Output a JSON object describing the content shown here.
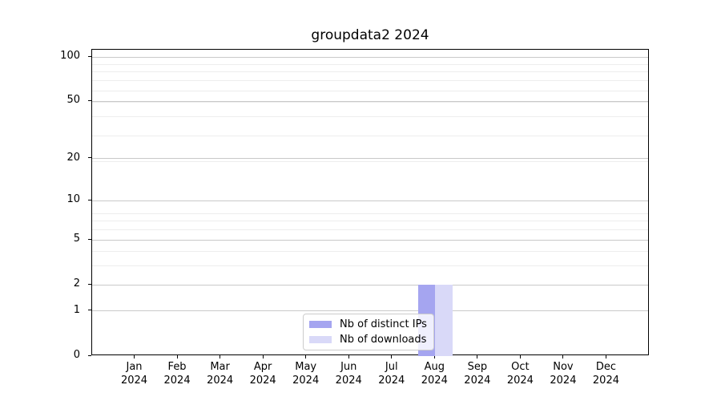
{
  "chart_data": {
    "type": "bar",
    "title": "groupdata2 2024",
    "x_categories": [
      "Jan",
      "Feb",
      "Mar",
      "Apr",
      "May",
      "Jun",
      "Jul",
      "Aug",
      "Sep",
      "Oct",
      "Nov",
      "Dec"
    ],
    "x_year": "2024",
    "series": [
      {
        "name": "Nb of distinct IPs",
        "color": "#a5a5f0",
        "values": [
          0,
          0,
          0,
          0,
          0,
          0,
          0,
          2,
          0,
          0,
          0,
          0
        ]
      },
      {
        "name": "Nb of downloads",
        "color": "#d9d9f8",
        "values": [
          0,
          0,
          0,
          0,
          0,
          0,
          0,
          2,
          0,
          0,
          0,
          0
        ]
      }
    ],
    "yscale": "log1p",
    "ylabel": "",
    "xlabel": "",
    "yticks": [
      0,
      1,
      2,
      5,
      10,
      20,
      50,
      100
    ],
    "y_minor_gridlines_vplus1": [
      2,
      3,
      4,
      5,
      6,
      7,
      8,
      9,
      20,
      30,
      40,
      50,
      60,
      70,
      80,
      90
    ],
    "ymax": 112,
    "grid": "horizontal",
    "legend_position": "lower center"
  },
  "colors": {
    "spine": "#000000",
    "major_grid": "#c9c9c9",
    "minor_grid": "#ededed",
    "background": "#ffffff"
  }
}
